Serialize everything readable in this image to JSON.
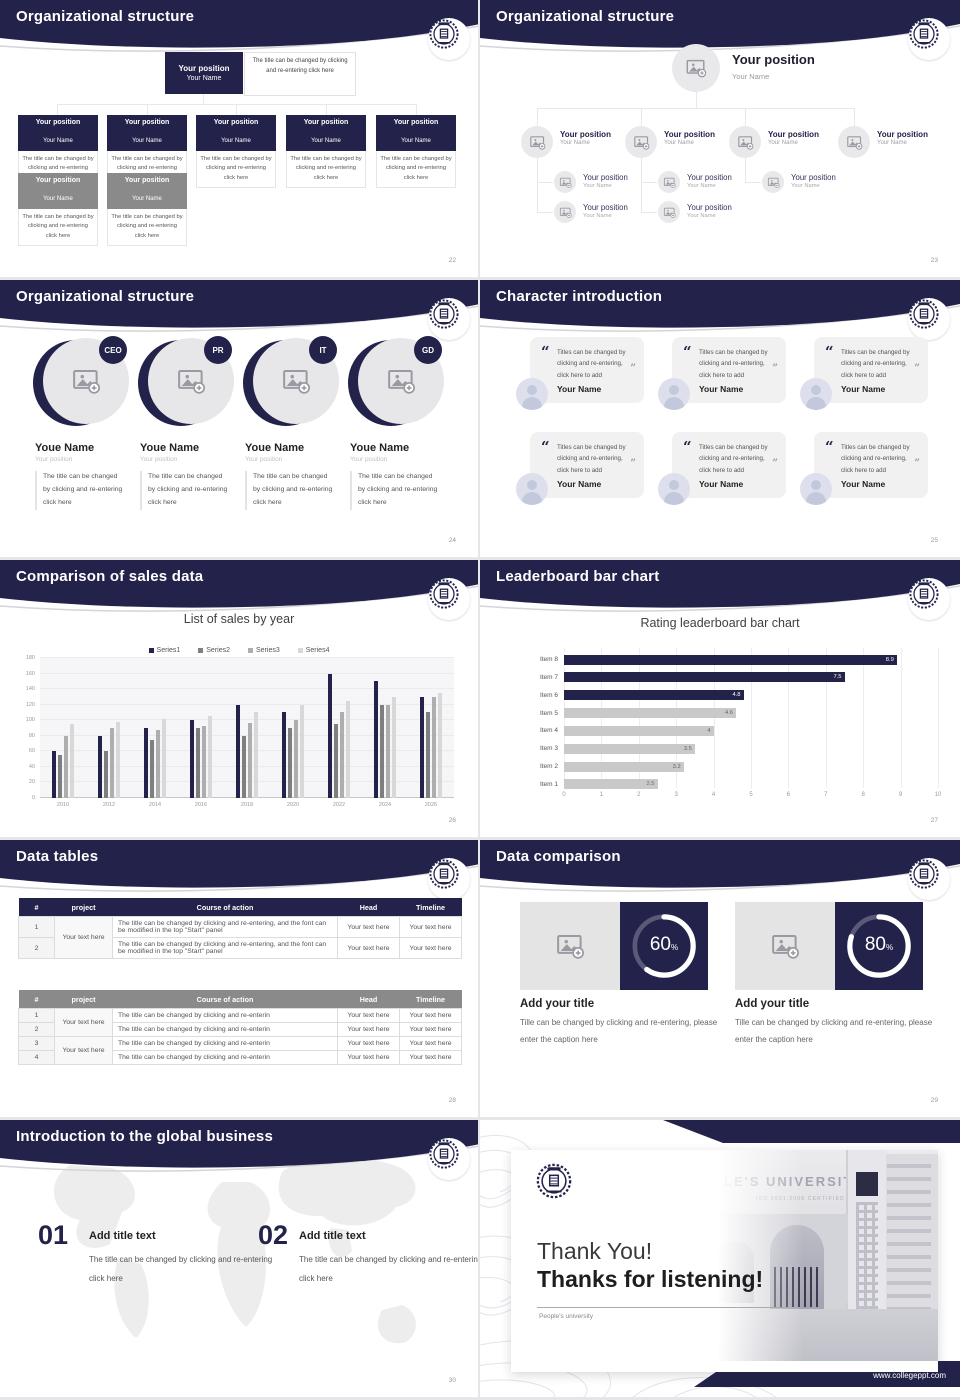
{
  "strings": {
    "yp": "Your position",
    "yn": "Your Name",
    "yne": "Youe Name",
    "body": "The title can be changed by clicking and re-entering click here",
    "quote": "Titles can be changed by clicking and re-entering, click here to add",
    "oq": "“",
    "cq": "”",
    "course1": "The title can be changed by clicking and re-entering, and the font can be modified in the top \"Start\" panel",
    "course2": "The title can be changed by clicking and re-enterin",
    "yth": "Your text here",
    "add_your_title": "Add your title",
    "caption29": "Tille can be changed by clicking and re-entering, please enter the caption here",
    "add_title_text": "Add title text",
    "pct": "%"
  },
  "s22": {
    "title": "Organizational structure",
    "page": "22"
  },
  "s23": {
    "title": "Organizational structure",
    "page": "23"
  },
  "s24": {
    "title": "Organizational structure",
    "page": "24",
    "badges": [
      "CEO",
      "PR",
      "IT",
      "GD"
    ]
  },
  "s25": {
    "title": "Character introduction",
    "page": "25"
  },
  "s26": {
    "title": "Comparison of sales data",
    "page": "26"
  },
  "s27": {
    "title": "Leaderboard bar chart",
    "page": "27"
  },
  "s28": {
    "title": "Data tables",
    "page": "28",
    "headers": [
      "#",
      "project",
      "Course of action",
      "Head",
      "Timeline"
    ],
    "rows1": [
      "1",
      "2"
    ],
    "rows2": [
      "1",
      "2",
      "3",
      "4"
    ]
  },
  "s29": {
    "title": "Data comparison",
    "page": "29"
  },
  "s30": {
    "title": "Introduction to the global business",
    "page": "30",
    "nums": [
      "01",
      "02"
    ]
  },
  "s31": {
    "thank": "Thank You!",
    "listen": "Thanks for listening!",
    "sub": "People's university",
    "url": "www.collegeppt.com",
    "photo_title": "LE'S UNIVERSITY",
    "photo_sub": "ISO 9001:2008 CERTIFIED"
  },
  "chart_data": [
    {
      "type": "bar",
      "title": "List of sales by year",
      "categories": [
        "2010",
        "2012",
        "2014",
        "2016",
        "2018",
        "2020",
        "2022",
        "2024",
        "2026"
      ],
      "series": [
        {
          "name": "Series1",
          "values": [
            60,
            80,
            90,
            100,
            120,
            110,
            160,
            150,
            130
          ]
        },
        {
          "name": "Series2",
          "values": [
            55,
            60,
            75,
            90,
            80,
            90,
            95,
            120,
            110
          ]
        },
        {
          "name": "Series3",
          "values": [
            80,
            90,
            88,
            92,
            97,
            100,
            110,
            120,
            130
          ]
        },
        {
          "name": "Series4",
          "values": [
            95,
            98,
            102,
            105,
            110,
            120,
            125,
            130,
            135
          ]
        }
      ],
      "colors": [
        "#23224a",
        "#7f7f7f",
        "#aeaeae",
        "#d8d8d8"
      ],
      "ylim": [
        0,
        180
      ],
      "ystep": 20,
      "xlabel": "",
      "ylabel": "",
      "legend_position": "top",
      "grid": true
    },
    {
      "type": "bar",
      "orientation": "horizontal",
      "title": "Rating leaderboard bar chart",
      "categories": [
        "Item 8",
        "Item 7",
        "Item 6",
        "Item 5",
        "Item 4",
        "Item 3",
        "Item 2",
        "Item 1"
      ],
      "values": [
        8.9,
        7.5,
        4.8,
        4.6,
        4,
        3.5,
        3.2,
        2.5
      ],
      "labels": [
        "8.9",
        "7.5",
        "4.8",
        "4.6",
        "4",
        "3.5",
        "3.2",
        "2.5"
      ],
      "xlim": [
        0,
        10
      ],
      "xstep": 1,
      "highlight_count": 3,
      "colors": {
        "highlight": "#23224a",
        "normal": "#c9c9c9"
      }
    },
    {
      "type": "donut",
      "values": [
        60,
        80
      ],
      "ring_color": "#ffffff",
      "bg_color": "#23224a"
    }
  ]
}
